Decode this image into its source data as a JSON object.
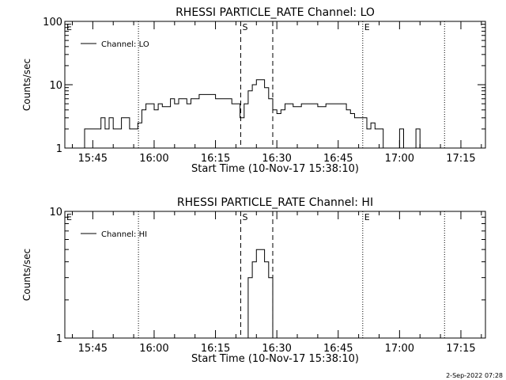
{
  "footer_timestamp": "2-Sep-2022 07:28",
  "chart_data": [
    {
      "type": "line",
      "title": "RHESSI PARTICLE_RATE Channel: LO",
      "xlabel": "Start Time (10-Nov-17 15:38:10)",
      "ylabel": "Counts/sec",
      "y_scale": "log",
      "ylim": [
        1,
        100
      ],
      "y_ticks": [
        {
          "value": 1,
          "label": "1"
        },
        {
          "value": 10,
          "label": "10"
        },
        {
          "value": 100,
          "label": "100"
        }
      ],
      "x_time_range": [
        "15:38:10",
        "17:21:00"
      ],
      "x_ticks": [
        "15:45",
        "16:00",
        "16:15",
        "16:30",
        "16:45",
        "17:00",
        "17:15"
      ],
      "legend": {
        "placement": "top-left",
        "entries": [
          "Channel: LO"
        ]
      },
      "markers": [
        {
          "label": "E",
          "time": "15:38:10",
          "style": "dotted"
        },
        {
          "label": "",
          "time": "15:56:10",
          "style": "dotted"
        },
        {
          "label": "S",
          "time": "16:21:10",
          "style": "dashed"
        },
        {
          "label": "",
          "time": "16:29:00",
          "style": "dashed"
        },
        {
          "label": "E",
          "time": "16:51:00",
          "style": "dotted"
        },
        {
          "label": "",
          "time": "17:11:00",
          "style": "dotted"
        }
      ],
      "series": [
        {
          "name": "Channel: LO",
          "points": [
            [
              "15:39:00",
              1
            ],
            [
              "15:42:00",
              1
            ],
            [
              "15:43:00",
              2
            ],
            [
              "15:46:00",
              2
            ],
            [
              "15:47:00",
              3
            ],
            [
              "15:48:00",
              2
            ],
            [
              "15:49:00",
              3
            ],
            [
              "15:50:00",
              2
            ],
            [
              "15:52:00",
              3
            ],
            [
              "15:53:00",
              3
            ],
            [
              "15:54:00",
              2
            ],
            [
              "15:56:00",
              2.5
            ],
            [
              "15:57:00",
              4
            ],
            [
              "15:58:00",
              5
            ],
            [
              "15:59:00",
              5
            ],
            [
              "16:00:00",
              4
            ],
            [
              "16:01:00",
              5
            ],
            [
              "16:02:00",
              4.5
            ],
            [
              "16:04:00",
              6
            ],
            [
              "16:05:00",
              5
            ],
            [
              "16:06:00",
              6
            ],
            [
              "16:08:00",
              5
            ],
            [
              "16:09:00",
              6
            ],
            [
              "16:11:00",
              7
            ],
            [
              "16:13:00",
              7
            ],
            [
              "16:15:00",
              6
            ],
            [
              "16:17:00",
              6
            ],
            [
              "16:19:00",
              5
            ],
            [
              "16:20:00",
              5
            ],
            [
              "16:21:00",
              3
            ],
            [
              "16:22:00",
              5
            ],
            [
              "16:23:00",
              8
            ],
            [
              "16:24:00",
              10
            ],
            [
              "16:25:00",
              12
            ],
            [
              "16:26:00",
              12
            ],
            [
              "16:27:00",
              9
            ],
            [
              "16:28:00",
              6
            ],
            [
              "16:29:00",
              4
            ],
            [
              "16:30:00",
              3.5
            ],
            [
              "16:31:00",
              4
            ],
            [
              "16:32:00",
              5
            ],
            [
              "16:34:00",
              4.5
            ],
            [
              "16:36:00",
              5
            ],
            [
              "16:38:00",
              5
            ],
            [
              "16:40:00",
              4.5
            ],
            [
              "16:42:00",
              5
            ],
            [
              "16:44:00",
              5
            ],
            [
              "16:46:00",
              5
            ],
            [
              "16:47:00",
              4
            ],
            [
              "16:48:00",
              3.5
            ],
            [
              "16:49:00",
              3
            ],
            [
              "16:51:00",
              3
            ],
            [
              "16:52:00",
              2
            ],
            [
              "16:53:00",
              2.5
            ],
            [
              "16:54:00",
              2
            ],
            [
              "16:55:00",
              2
            ],
            [
              "16:56:00",
              1
            ],
            [
              "16:59:00",
              1
            ],
            [
              "17:00:00",
              2
            ],
            [
              "17:01:00",
              1
            ],
            [
              "17:03:00",
              1
            ],
            [
              "17:04:00",
              2
            ],
            [
              "17:05:00",
              1
            ]
          ]
        }
      ]
    },
    {
      "type": "line",
      "title": "RHESSI PARTICLE_RATE Channel: HI",
      "xlabel": "Start Time (10-Nov-17 15:38:10)",
      "ylabel": "Counts/sec",
      "y_scale": "log",
      "ylim": [
        1,
        10
      ],
      "y_ticks": [
        {
          "value": 1,
          "label": "1"
        },
        {
          "value": 10,
          "label": "10"
        }
      ],
      "x_time_range": [
        "15:38:10",
        "17:21:00"
      ],
      "x_ticks": [
        "15:45",
        "16:00",
        "16:15",
        "16:30",
        "16:45",
        "17:00",
        "17:15"
      ],
      "legend": {
        "placement": "top-left",
        "entries": [
          "Channel: HI"
        ]
      },
      "markers": [
        {
          "label": "E",
          "time": "15:38:10",
          "style": "dotted"
        },
        {
          "label": "",
          "time": "15:56:10",
          "style": "dotted"
        },
        {
          "label": "S",
          "time": "16:21:10",
          "style": "dashed"
        },
        {
          "label": "",
          "time": "16:29:00",
          "style": "dashed"
        },
        {
          "label": "E",
          "time": "16:51:00",
          "style": "dotted"
        },
        {
          "label": "",
          "time": "17:11:00",
          "style": "dotted"
        }
      ],
      "series": [
        {
          "name": "Channel: HI",
          "points": [
            [
              "16:22:00",
              1
            ],
            [
              "16:23:00",
              3
            ],
            [
              "16:24:00",
              4
            ],
            [
              "16:25:00",
              5
            ],
            [
              "16:26:00",
              5
            ],
            [
              "16:27:00",
              4
            ],
            [
              "16:28:00",
              3
            ],
            [
              "16:29:00",
              1
            ]
          ]
        }
      ]
    }
  ]
}
